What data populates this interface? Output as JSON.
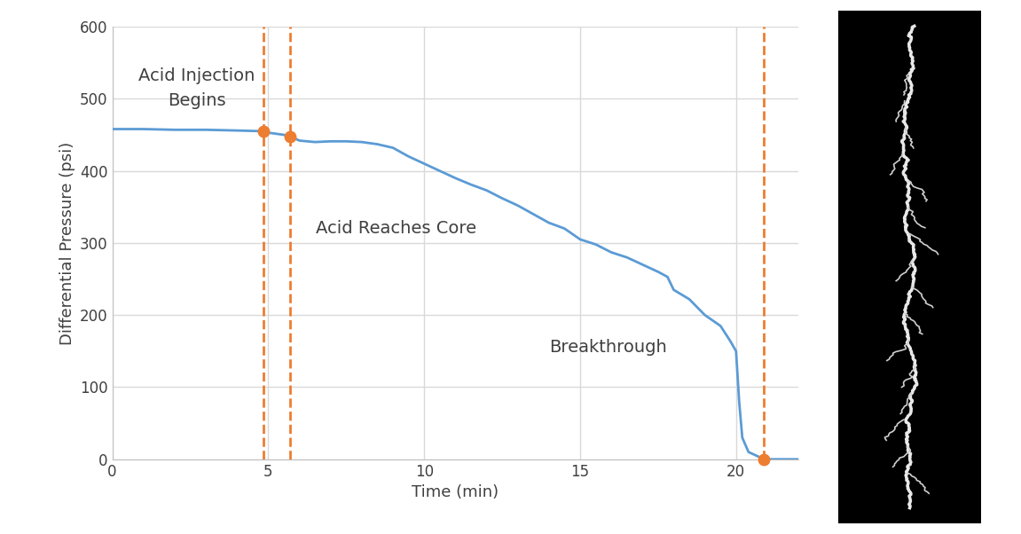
{
  "chart_data": {
    "type": "line",
    "x_label": "Time (min)",
    "y_label": "Differential Pressure (psi)",
    "x": [
      0,
      1,
      2,
      3,
      4,
      4.85,
      5,
      5.5,
      5.7,
      6,
      6.5,
      7,
      7.5,
      8,
      8.5,
      9,
      9.5,
      10,
      10.5,
      11,
      11.5,
      12,
      12.5,
      13,
      13.5,
      14,
      14.5,
      15,
      15.5,
      16,
      16.5,
      17,
      17.5,
      17.8,
      18,
      18.5,
      19,
      19.5,
      19.8,
      20,
      20.1,
      20.2,
      20.4,
      20.8,
      21,
      22
    ],
    "values": [
      458,
      458,
      457,
      457,
      456,
      455,
      453,
      450,
      448,
      442,
      440,
      441,
      441,
      440,
      437,
      432,
      420,
      410,
      400,
      390,
      381,
      373,
      362,
      352,
      340,
      328,
      320,
      305,
      298,
      287,
      280,
      270,
      260,
      253,
      235,
      222,
      200,
      185,
      165,
      150,
      80,
      30,
      10,
      2,
      0,
      0
    ],
    "color": "#5b9bd5",
    "events": {
      "x": [
        4.85,
        5.7,
        20.9
      ],
      "y": [
        455,
        448,
        0
      ],
      "color": "#ed7d31",
      "line_style": "dashed",
      "marker": "o"
    },
    "annotations": [
      "Acid Injection\nBegins",
      "Acid Reaches Core",
      "Breakthrough"
    ],
    "xlim": [
      0,
      22
    ],
    "xticks": [
      0,
      5,
      10,
      15,
      20
    ],
    "ylim": [
      0,
      600
    ],
    "yticks": [
      0,
      100,
      200,
      300,
      400,
      500,
      600
    ],
    "grid": true
  }
}
